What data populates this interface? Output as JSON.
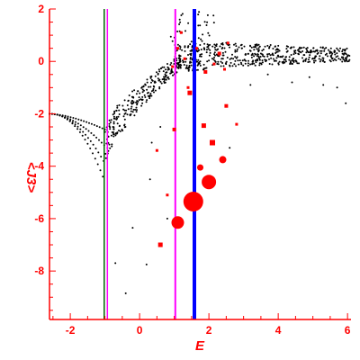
{
  "chart_data": {
    "type": "scatter",
    "xlabel": "E",
    "ylabel": "<J3>",
    "xlim": [
      -2.6,
      6.1
    ],
    "ylim": [
      -9.85,
      2.0
    ],
    "x_ticks": [
      "-2",
      "0",
      "2",
      "4",
      "6"
    ],
    "x_tick_values": [
      -2,
      0,
      2,
      4,
      6
    ],
    "y_ticks": [
      "2",
      "0",
      "-2",
      "-4",
      "-6",
      "-8"
    ],
    "y_tick_values": [
      2,
      0,
      -2,
      -4,
      -6,
      -8
    ],
    "grid": false,
    "colors": {
      "axis": "#ff0000",
      "points": "#000000",
      "highlight": "#ff0000",
      "line_darkgreen": "#006400",
      "line_magenta": "#ff00ff",
      "line_blue": "#0000ff"
    },
    "vertical_lines": [
      {
        "x": -1.02,
        "color": "#006400",
        "width": 1.5
      },
      {
        "x": -0.93,
        "color": "#ff00ff",
        "width": 1.5
      },
      {
        "x": 1.03,
        "color": "#ff00ff",
        "width": 2
      },
      {
        "x": 1.58,
        "color": "#0000ff",
        "width": 4
      }
    ],
    "red_points": [
      {
        "x": 1.55,
        "y": -5.35,
        "r": 11
      },
      {
        "x": 2.0,
        "y": -4.6,
        "r": 8
      },
      {
        "x": 1.1,
        "y": -6.15,
        "r": 7
      },
      {
        "x": 2.4,
        "y": -3.75,
        "r": 4
      },
      {
        "x": 1.75,
        "y": -4.05,
        "r": 3.5
      },
      {
        "x": 2.1,
        "y": -3.1,
        "r": 3
      },
      {
        "x": 1.45,
        "y": -1.2,
        "r": 2.5
      },
      {
        "x": 1.85,
        "y": -2.45,
        "r": 2.5
      },
      {
        "x": 0.6,
        "y": -7.0,
        "r": 2.5
      },
      {
        "x": 1.0,
        "y": -2.6,
        "r": 2
      },
      {
        "x": 2.5,
        "y": -1.7,
        "r": 2
      },
      {
        "x": 2.8,
        "y": -2.4,
        "r": 1.5
      },
      {
        "x": 0.8,
        "y": -5.1,
        "r": 1.5
      },
      {
        "x": 1.9,
        "y": -0.4,
        "r": 2
      },
      {
        "x": 2.3,
        "y": 0.3,
        "r": 2
      },
      {
        "x": 2.15,
        "y": -0.1,
        "r": 1.5
      },
      {
        "x": 1.3,
        "y": 0.1,
        "r": 1.5
      },
      {
        "x": 1.2,
        "y": 1.1,
        "r": 1.5
      },
      {
        "x": 2.55,
        "y": 0.7,
        "r": 1.5
      },
      {
        "x": 1.65,
        "y": 0.5,
        "r": 1.5
      },
      {
        "x": 1.4,
        "y": -1.0,
        "r": 1.5
      },
      {
        "x": 0.95,
        "y": -0.2,
        "r": 1.5
      },
      {
        "x": 1.1,
        "y": 0.5,
        "r": 1.5
      },
      {
        "x": 2.45,
        "y": -0.3,
        "r": 1.5
      },
      {
        "x": 0.5,
        "y": -3.4,
        "r": 1.5
      }
    ],
    "black_points_sparse": [
      {
        "x": -0.7,
        "y": -7.7
      },
      {
        "x": -0.4,
        "y": -8.85
      },
      {
        "x": 0.2,
        "y": -7.75
      },
      {
        "x": -0.2,
        "y": -6.35
      },
      {
        "x": 0.3,
        "y": -4.5
      },
      {
        "x": 0.35,
        "y": -3.1
      },
      {
        "x": 0.6,
        "y": -2.5
      },
      {
        "x": 0.8,
        "y": -6.0
      },
      {
        "x": 2.6,
        "y": -3.3
      },
      {
        "x": 4.4,
        "y": -0.8
      },
      {
        "x": 5.3,
        "y": -0.9
      },
      {
        "x": 5.95,
        "y": -1.6
      },
      {
        "x": 3.7,
        "y": -0.5
      },
      {
        "x": 4.9,
        "y": -0.6
      },
      {
        "x": 3.2,
        "y": -0.9
      },
      {
        "x": 5.7,
        "y": -1.0
      }
    ]
  }
}
